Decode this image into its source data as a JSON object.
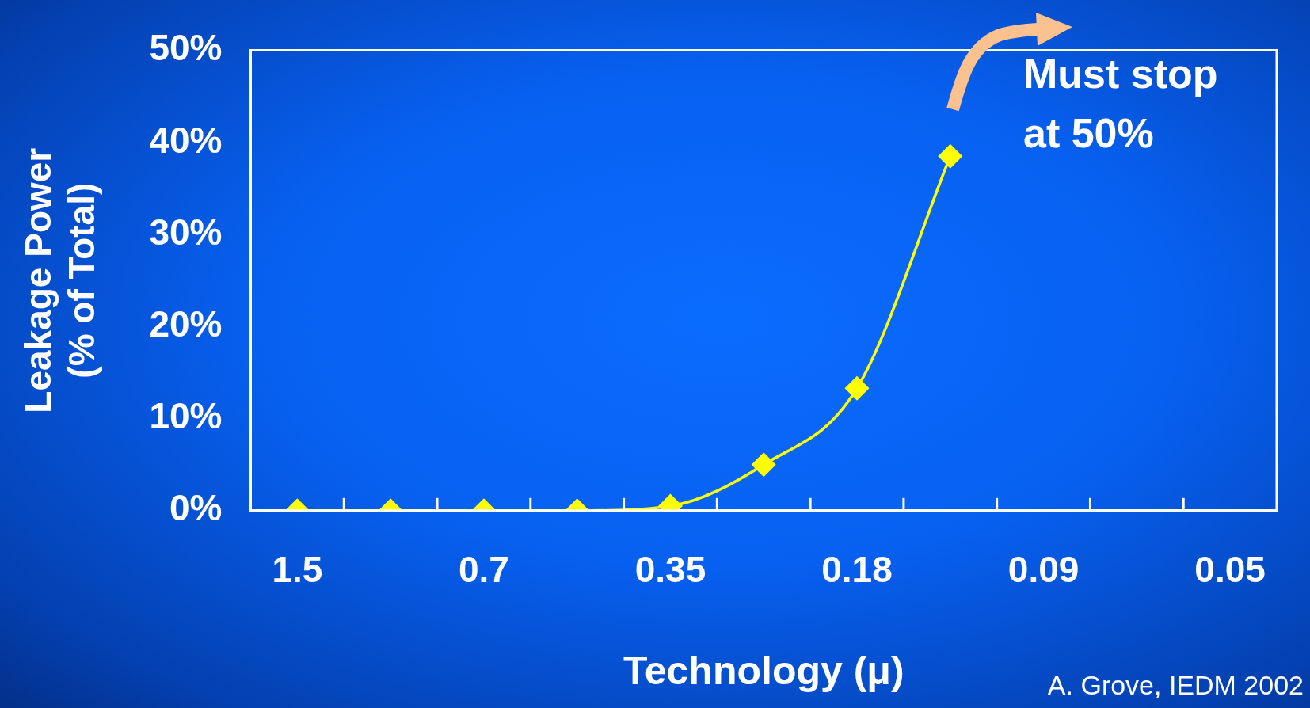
{
  "chart_data": {
    "type": "line",
    "xlabel": "Technology (μ)",
    "ylabel": "Leakage Power\n(% of Total)",
    "categories": [
      "1.5",
      null,
      "0.7",
      null,
      "0.35",
      null,
      "0.18",
      null,
      "0.09",
      null,
      "0.05"
    ],
    "series": [
      {
        "color": "#ffff00",
        "values": [
          0,
          0,
          0,
          0,
          0.5,
          5,
          13.3,
          38.5,
          null,
          null,
          null
        ]
      }
    ],
    "ylim": [
      0,
      50
    ],
    "yticks": [
      {
        "value": 0,
        "label": "0%"
      },
      {
        "value": 10,
        "label": "10%"
      },
      {
        "value": 20,
        "label": "20%"
      },
      {
        "value": 30,
        "label": "30%"
      },
      {
        "value": 40,
        "label": "40%"
      },
      {
        "value": 50,
        "label": "50%"
      }
    ],
    "marker": "diamond",
    "line_style": "solid",
    "annotations": [
      "Must stop\nat 50%",
      "A. Grove, IEDM 2002"
    ]
  }
}
